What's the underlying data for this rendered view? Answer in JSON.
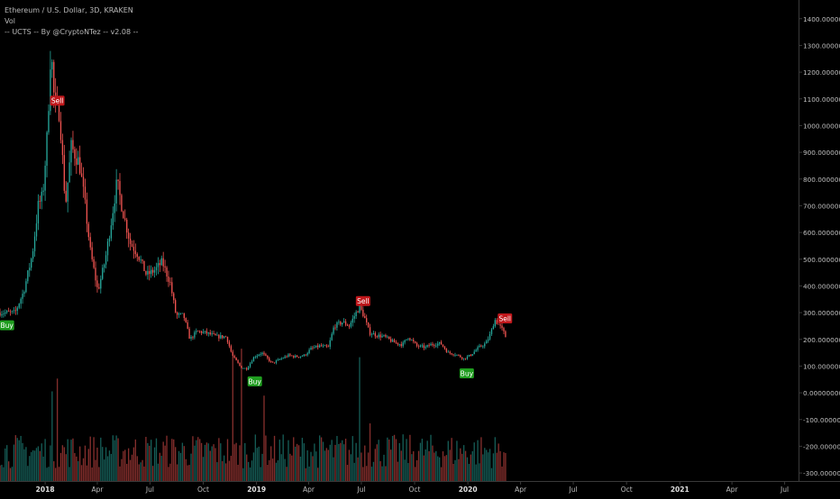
{
  "legend": {
    "symbol": "Ethereum / U.S. Dollar, 3D, KRAKEN",
    "vol": "Vol",
    "indicator": "-- UCTS -- By @CryptoNTez -- v2.08 --"
  },
  "colors": {
    "background": "#000000",
    "up": "#26a69a",
    "down": "#ef5350",
    "buy_badge": "#1f9d1f",
    "sell_badge": "#c0171b",
    "axis_text": "#bdbdbd",
    "axis_line": "#3a3a3a"
  },
  "chart_data": {
    "type": "candlestick",
    "y_axis": {
      "position": "right",
      "range": [
        -330,
        1470
      ],
      "ticks": [
        1400,
        1300,
        1200,
        1100,
        1000,
        900,
        800,
        700,
        600,
        500,
        400,
        300,
        200,
        100,
        0,
        -100,
        -200,
        -300
      ],
      "tick_labels": [
        "1400.00000000",
        "1300.00000000",
        "1200.00000000",
        "1100.00000000",
        "1000.00000000",
        "900.00000000",
        "800.00000000",
        "700.00000000",
        "600.00000000",
        "500.00000000",
        "400.00000000",
        "300.00000000",
        "200.00000000",
        "100.00000000",
        "0.00000000",
        "-100.00000000",
        "-200.00000000",
        "-300.00000000"
      ]
    },
    "x_axis": {
      "range": [
        "2017-10-15",
        "2021-07-25"
      ],
      "ticks": [
        {
          "date": "2018-01-01",
          "label": "2018",
          "bold": true
        },
        {
          "date": "2018-04-01",
          "label": "Apr",
          "bold": false
        },
        {
          "date": "2018-07-01",
          "label": "Jul",
          "bold": false
        },
        {
          "date": "2018-10-01",
          "label": "Oct",
          "bold": false
        },
        {
          "date": "2019-01-01",
          "label": "2019",
          "bold": true
        },
        {
          "date": "2019-04-01",
          "label": "Apr",
          "bold": false
        },
        {
          "date": "2019-07-01",
          "label": "Jul",
          "bold": false
        },
        {
          "date": "2019-10-01",
          "label": "Oct",
          "bold": false
        },
        {
          "date": "2020-01-01",
          "label": "2020",
          "bold": true
        },
        {
          "date": "2020-04-01",
          "label": "Apr",
          "bold": false
        },
        {
          "date": "2020-07-01",
          "label": "Jul",
          "bold": false
        },
        {
          "date": "2020-10-01",
          "label": "Oct",
          "bold": false
        },
        {
          "date": "2021-01-01",
          "label": "2021",
          "bold": true
        },
        {
          "date": "2021-04-01",
          "label": "Apr",
          "bold": false
        },
        {
          "date": "2021-07-01",
          "label": "Jul",
          "bold": false
        }
      ]
    },
    "series": [
      {
        "name": "ETH/USD",
        "kind": "price",
        "points": [
          [
            "2017-10-15",
            300
          ],
          [
            "2017-11-10",
            300
          ],
          [
            "2017-11-25",
            380
          ],
          [
            "2017-12-10",
            520
          ],
          [
            "2017-12-20",
            700
          ],
          [
            "2017-12-28",
            740
          ],
          [
            "2018-01-05",
            980
          ],
          [
            "2018-01-11",
            1300
          ],
          [
            "2018-01-17",
            1080
          ],
          [
            "2018-01-26",
            1050
          ],
          [
            "2018-02-05",
            700
          ],
          [
            "2018-02-15",
            920
          ],
          [
            "2018-03-01",
            860
          ],
          [
            "2018-03-10",
            720
          ],
          [
            "2018-03-20",
            530
          ],
          [
            "2018-04-02",
            380
          ],
          [
            "2018-04-15",
            500
          ],
          [
            "2018-04-25",
            640
          ],
          [
            "2018-05-05",
            790
          ],
          [
            "2018-05-15",
            680
          ],
          [
            "2018-05-28",
            560
          ],
          [
            "2018-06-10",
            520
          ],
          [
            "2018-06-25",
            440
          ],
          [
            "2018-07-10",
            460
          ],
          [
            "2018-07-22",
            490
          ],
          [
            "2018-08-05",
            410
          ],
          [
            "2018-08-15",
            290
          ],
          [
            "2018-08-28",
            290
          ],
          [
            "2018-09-08",
            200
          ],
          [
            "2018-09-20",
            230
          ],
          [
            "2018-10-05",
            225
          ],
          [
            "2018-10-25",
            210
          ],
          [
            "2018-11-10",
            210
          ],
          [
            "2018-11-20",
            140
          ],
          [
            "2018-12-05",
            95
          ],
          [
            "2018-12-15",
            90
          ],
          [
            "2018-12-28",
            135
          ],
          [
            "2019-01-10",
            150
          ],
          [
            "2019-01-28",
            110
          ],
          [
            "2019-02-10",
            125
          ],
          [
            "2019-02-25",
            140
          ],
          [
            "2019-03-10",
            135
          ],
          [
            "2019-03-25",
            140
          ],
          [
            "2019-04-05",
            165
          ],
          [
            "2019-04-20",
            175
          ],
          [
            "2019-05-05",
            170
          ],
          [
            "2019-05-15",
            250
          ],
          [
            "2019-05-30",
            265
          ],
          [
            "2019-06-10",
            250
          ],
          [
            "2019-06-22",
            300
          ],
          [
            "2019-06-28",
            320
          ],
          [
            "2019-07-05",
            290
          ],
          [
            "2019-07-15",
            225
          ],
          [
            "2019-07-28",
            215
          ],
          [
            "2019-08-10",
            210
          ],
          [
            "2019-08-25",
            190
          ],
          [
            "2019-09-10",
            180
          ],
          [
            "2019-09-20",
            210
          ],
          [
            "2019-10-05",
            175
          ],
          [
            "2019-10-20",
            170
          ],
          [
            "2019-10-28",
            180
          ],
          [
            "2019-11-15",
            185
          ],
          [
            "2019-11-28",
            150
          ],
          [
            "2019-12-10",
            145
          ],
          [
            "2019-12-25",
            128
          ],
          [
            "2020-01-05",
            140
          ],
          [
            "2020-01-20",
            170
          ],
          [
            "2020-02-01",
            185
          ],
          [
            "2020-02-10",
            225
          ],
          [
            "2020-02-16",
            275
          ],
          [
            "2020-02-25",
            250
          ],
          [
            "2020-03-02",
            230
          ],
          [
            "2020-03-08",
            200
          ]
        ]
      },
      {
        "name": "Vol",
        "kind": "volume",
        "range": [
          "2017-10-15",
          "2020-03-08"
        ],
        "spikes": [
          {
            "date": "2018-01-12",
            "value": 0.42
          },
          {
            "date": "2018-01-22",
            "value": 0.48
          },
          {
            "date": "2018-11-20",
            "value": 0.58
          },
          {
            "date": "2018-12-05",
            "value": 0.62
          },
          {
            "date": "2019-01-15",
            "value": 0.4
          },
          {
            "date": "2019-06-28",
            "value": 0.58
          },
          {
            "date": "2019-07-15",
            "value": 0.27
          },
          {
            "date": "2020-02-18",
            "value": 0.18
          }
        ]
      }
    ],
    "signals": [
      {
        "type": "buy",
        "label": "Buy",
        "date": "2017-10-27",
        "price": 300
      },
      {
        "type": "sell",
        "label": "Sell",
        "date": "2018-01-22",
        "price": 1080
      },
      {
        "type": "buy",
        "label": "Buy",
        "date": "2018-12-29",
        "price": 90
      },
      {
        "type": "sell",
        "label": "Sell",
        "date": "2019-07-04",
        "price": 330
      },
      {
        "type": "buy",
        "label": "Buy",
        "date": "2019-12-30",
        "price": 120
      },
      {
        "type": "sell",
        "label": "Sell",
        "date": "2020-03-05",
        "price": 265
      }
    ]
  }
}
